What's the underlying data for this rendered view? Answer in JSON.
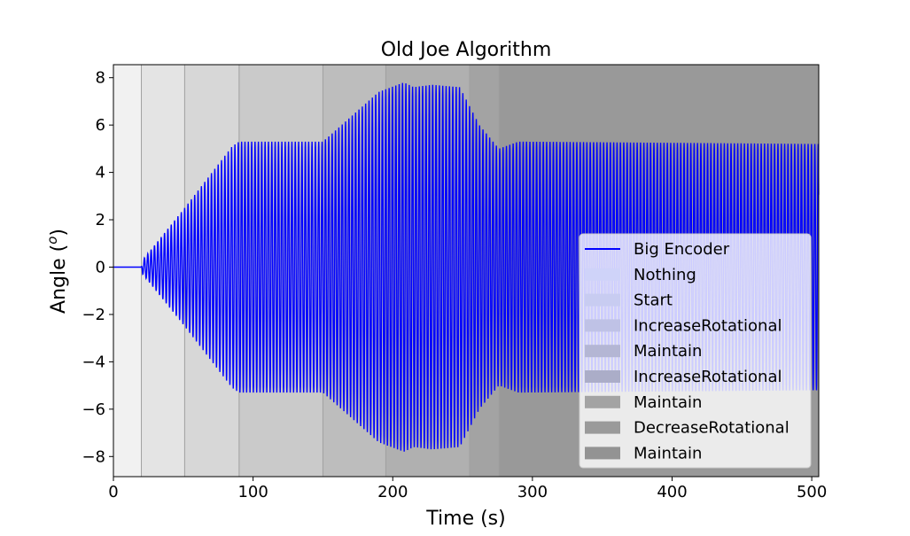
{
  "chart_data": {
    "type": "line",
    "title": "Old Joe Algorithm",
    "xlabel": "Time (s)",
    "ylabel": "Angle (",
    "ylabel_sup": "o",
    "ylabel_close": ")",
    "xlim": [
      0,
      505
    ],
    "ylim": [
      -8.85,
      8.55
    ],
    "x_ticks": [
      0,
      100,
      200,
      300,
      400,
      500
    ],
    "y_ticks": [
      -8,
      -6,
      -4,
      -2,
      0,
      2,
      4,
      6,
      8
    ],
    "x_tick_labels": [
      "0",
      "100",
      "200",
      "300",
      "400",
      "500"
    ],
    "y_tick_labels": [
      "−8",
      "−6",
      "−4",
      "−2",
      "0",
      "2",
      "4",
      "6",
      "8"
    ],
    "grid": false,
    "legend_placement": "lower-right",
    "series": [
      {
        "name": "Big Encoder",
        "color": "#0000ff",
        "oscillation_period_s": 2.4,
        "amplitude_envelope": [
          {
            "t": 0,
            "amp": 0
          },
          {
            "t": 20,
            "amp": 0
          },
          {
            "t": 21,
            "amp": 0.3
          },
          {
            "t": 51,
            "amp": 2.5
          },
          {
            "t": 85,
            "amp": 5.1
          },
          {
            "t": 90,
            "amp": 5.3
          },
          {
            "t": 150,
            "amp": 5.3
          },
          {
            "t": 190,
            "amp": 7.4
          },
          {
            "t": 208,
            "amp": 7.8
          },
          {
            "t": 215,
            "amp": 7.6
          },
          {
            "t": 228,
            "amp": 7.7
          },
          {
            "t": 248,
            "amp": 7.6
          },
          {
            "t": 262,
            "amp": 6.0
          },
          {
            "t": 276,
            "amp": 5.0
          },
          {
            "t": 290,
            "amp": 5.3
          },
          {
            "t": 505,
            "amp": 5.2
          }
        ]
      }
    ],
    "phases": [
      {
        "name": "Nothing",
        "start": 0,
        "end": 20,
        "color": "#f1f1f1"
      },
      {
        "name": "Start",
        "start": 20,
        "end": 51,
        "color": "#e4e4e4"
      },
      {
        "name": "IncreaseRotational",
        "start": 51,
        "end": 90,
        "color": "#d7d7d7"
      },
      {
        "name": "Maintain",
        "start": 90,
        "end": 150,
        "color": "#cacaca"
      },
      {
        "name": "IncreaseRotational",
        "start": 150,
        "end": 195,
        "color": "#bdbdbd"
      },
      {
        "name": "Maintain",
        "start": 195,
        "end": 255,
        "color": "#b0b0b0"
      },
      {
        "name": "DecreaseRotational",
        "start": 255,
        "end": 276,
        "color": "#a3a3a3"
      },
      {
        "name": "Maintain",
        "start": 276,
        "end": 505,
        "color": "#999999"
      }
    ],
    "legend": [
      {
        "label": "Big Encoder",
        "kind": "line",
        "color": "#0000ff"
      },
      {
        "label": "Nothing",
        "kind": "patch",
        "color": "#cfd3f9"
      },
      {
        "label": "Start",
        "kind": "patch",
        "color": "#c8ccf1"
      },
      {
        "label": "IncreaseRotational",
        "kind": "patch",
        "color": "#bfc2e6"
      },
      {
        "label": "Maintain",
        "kind": "patch",
        "color": "#b4b6d4"
      },
      {
        "label": "IncreaseRotational",
        "kind": "patch",
        "color": "#abadc8"
      },
      {
        "label": "Maintain",
        "kind": "patch",
        "color": "#a3a3a3"
      },
      {
        "label": "DecreaseRotational",
        "kind": "patch",
        "color": "#9a9a9a"
      },
      {
        "label": "Maintain",
        "kind": "patch",
        "color": "#939393"
      }
    ]
  }
}
